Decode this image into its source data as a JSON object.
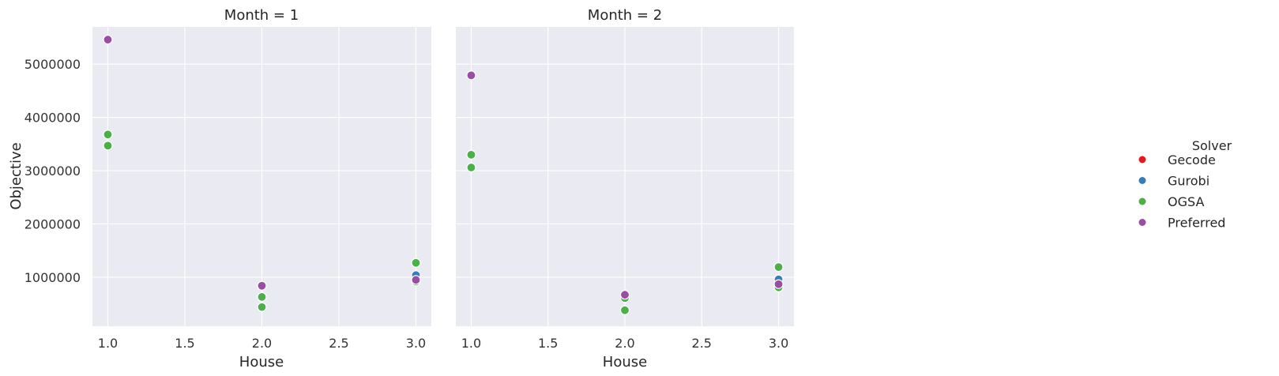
{
  "chart_data": {
    "type": "scatter",
    "hue_title": "Solver",
    "legend_placement": "right",
    "grid": true,
    "ylabel": "Objective",
    "xlim": [
      0.9,
      3.1
    ],
    "ylim": [
      80000,
      5700000
    ],
    "xticks": [
      "1.0",
      "1.5",
      "2.0",
      "2.5",
      "3.0"
    ],
    "yticks": [
      "1000000",
      "2000000",
      "3000000",
      "4000000",
      "5000000"
    ],
    "series_colors": {
      "Gecode": "#e41a1c",
      "Gurobi": "#377eb8",
      "OGSA": "#4daf4a",
      "Preferred": "#984ea3"
    },
    "legend": [
      {
        "name": "Gecode",
        "color": "#e41a1c"
      },
      {
        "name": "Gurobi",
        "color": "#377eb8"
      },
      {
        "name": "OGSA",
        "color": "#4daf4a"
      },
      {
        "name": "Preferred",
        "color": "#984ea3"
      }
    ],
    "panels": [
      {
        "title": "Month = 1",
        "xlabel": "House",
        "points": [
          {
            "solver": "OGSA",
            "x": 1.0,
            "y": 3680000
          },
          {
            "solver": "OGSA",
            "x": 1.0,
            "y": 3470000
          },
          {
            "solver": "Preferred",
            "x": 1.0,
            "y": 5460000
          },
          {
            "solver": "OGSA",
            "x": 2.0,
            "y": 630000
          },
          {
            "solver": "OGSA",
            "x": 2.0,
            "y": 440000
          },
          {
            "solver": "Preferred",
            "x": 2.0,
            "y": 840000
          },
          {
            "solver": "Gecode",
            "x": 3.0,
            "y": 920000
          },
          {
            "solver": "OGSA",
            "x": 3.0,
            "y": 920000
          },
          {
            "solver": "OGSA",
            "x": 3.0,
            "y": 1270000
          },
          {
            "solver": "Gurobi",
            "x": 3.0,
            "y": 1040000
          },
          {
            "solver": "Preferred",
            "x": 3.0,
            "y": 950000
          }
        ]
      },
      {
        "title": "Month = 2",
        "xlabel": "House",
        "points": [
          {
            "solver": "OGSA",
            "x": 1.0,
            "y": 3300000
          },
          {
            "solver": "OGSA",
            "x": 1.0,
            "y": 3060000
          },
          {
            "solver": "Preferred",
            "x": 1.0,
            "y": 4790000
          },
          {
            "solver": "OGSA",
            "x": 2.0,
            "y": 610000
          },
          {
            "solver": "OGSA",
            "x": 2.0,
            "y": 380000
          },
          {
            "solver": "Preferred",
            "x": 2.0,
            "y": 670000
          },
          {
            "solver": "Gecode",
            "x": 3.0,
            "y": 810000
          },
          {
            "solver": "OGSA",
            "x": 3.0,
            "y": 810000
          },
          {
            "solver": "OGSA",
            "x": 3.0,
            "y": 1190000
          },
          {
            "solver": "Gurobi",
            "x": 3.0,
            "y": 960000
          },
          {
            "solver": "Preferred",
            "x": 3.0,
            "y": 870000
          }
        ]
      }
    ]
  }
}
